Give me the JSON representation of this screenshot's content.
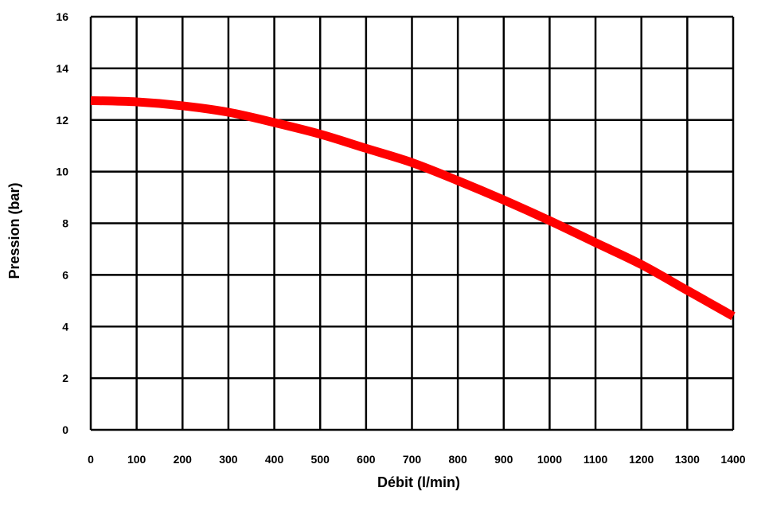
{
  "chart_data": {
    "type": "line",
    "xlabel": "Débit (l/min)",
    "ylabel": "Pression (bar)",
    "xlim": [
      0,
      1400
    ],
    "ylim": [
      0,
      16
    ],
    "x_ticks": [
      "0",
      "100",
      "200",
      "300",
      "400",
      "500",
      "600",
      "700",
      "800",
      "900",
      "1000",
      "1100",
      "1200",
      "1300",
      "1400"
    ],
    "y_ticks": [
      "0",
      "2",
      "4",
      "6",
      "8",
      "10",
      "12",
      "14",
      "16"
    ],
    "grid": true,
    "series": [
      {
        "color": "#ff0000",
        "x": [
          0,
          100,
          200,
          300,
          400,
          500,
          600,
          700,
          800,
          900,
          1000,
          1100,
          1200,
          1300,
          1400
        ],
        "y": [
          12.75,
          12.7,
          12.55,
          12.3,
          11.9,
          11.45,
          10.9,
          10.35,
          9.65,
          8.9,
          8.1,
          7.25,
          6.4,
          5.4,
          4.4
        ]
      }
    ]
  }
}
